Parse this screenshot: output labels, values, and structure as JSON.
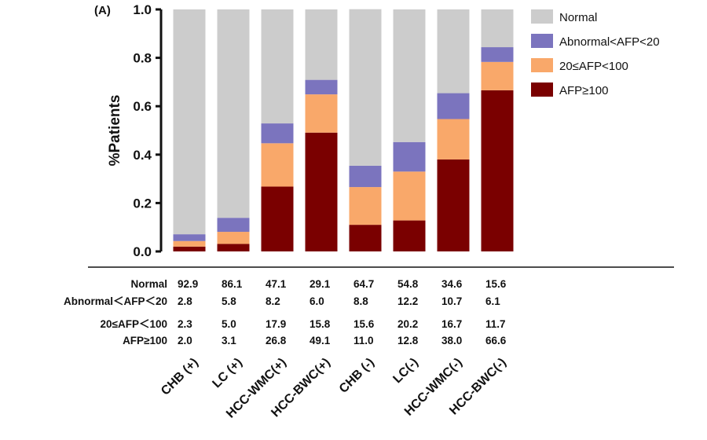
{
  "panel_label": "(A)",
  "chart_data": {
    "type": "bar",
    "stacked": true,
    "normalized": true,
    "title": "",
    "xlabel": "",
    "ylabel": "%Patients",
    "ylim": [
      0,
      1.0
    ],
    "yticks": [
      "0.0",
      "0.2",
      "0.4",
      "0.6",
      "0.8",
      "1.0"
    ],
    "ytick_values": [
      0,
      0.2,
      0.4,
      0.6,
      0.8,
      1.0
    ],
    "legend_position": "right",
    "categories": [
      "CHB (+)",
      "LC (+)",
      "HCC-WMC(+)",
      "HCC-BWC(+)",
      "CHB (-)",
      "LC(-)",
      "HCC-WMC(-)",
      "HCC-BWC(-)"
    ],
    "series": [
      {
        "name": "AFP≥100",
        "color": "#7a0000",
        "values": [
          2.0,
          3.1,
          26.8,
          49.1,
          11.0,
          12.8,
          38.0,
          66.6
        ]
      },
      {
        "name": "20≤AFP<100",
        "color": "#f9a86a",
        "values": [
          2.3,
          5.0,
          17.9,
          15.8,
          15.6,
          20.2,
          16.7,
          11.7
        ]
      },
      {
        "name": "Abnormal<AFP<20",
        "color": "#7b74be",
        "values": [
          2.8,
          5.8,
          8.2,
          6.0,
          8.8,
          12.2,
          10.7,
          6.1
        ]
      },
      {
        "name": "Normal",
        "color": "#cccccc",
        "values": [
          92.9,
          86.1,
          47.1,
          29.1,
          64.7,
          54.8,
          34.6,
          15.6
        ]
      }
    ],
    "legend_order": [
      "Normal",
      "Abnormal<AFP<20",
      "20≤AFP<100",
      "AFP≥100"
    ],
    "table": {
      "row_labels": [
        "Normal",
        "Abnormal＜AFP＜20",
        "20≤AFP＜100",
        "AFP≥100"
      ],
      "rows": [
        [
          "92.9",
          "86.1",
          "47.1",
          "29.1",
          "64.7",
          "54.8",
          "34.6",
          "15.6"
        ],
        [
          "2.8",
          "5.8",
          "8.2",
          "6.0",
          "8.8",
          "12.2",
          "10.7",
          "6.1"
        ],
        [
          "2.3",
          "5.0",
          "17.9",
          "15.8",
          "15.6",
          "20.2",
          "16.7",
          "11.7"
        ],
        [
          "2.0",
          "3.1",
          "26.8",
          "49.1",
          "11.0",
          "12.8",
          "38.0",
          "66.6"
        ]
      ]
    }
  }
}
